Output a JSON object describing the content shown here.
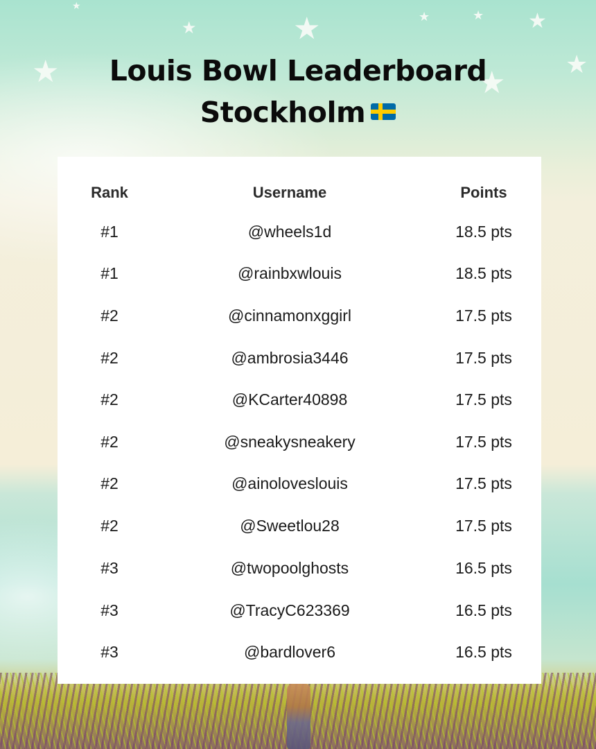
{
  "title_line1": "Louis Bowl Leaderboard",
  "title_line2": "Stockholm",
  "flag_icon": "sweden-flag-icon",
  "columns": {
    "rank": "Rank",
    "username": "Username",
    "points": "Points"
  },
  "rows": [
    {
      "rank": "#1",
      "username": "@wheels1d",
      "points": "18.5 pts"
    },
    {
      "rank": "#1",
      "username": "@rainbxwlouis",
      "points": "18.5 pts"
    },
    {
      "rank": "#2",
      "username": "@cinnamonxggirl",
      "points": "17.5 pts"
    },
    {
      "rank": "#2",
      "username": "@ambrosia3446",
      "points": "17.5 pts"
    },
    {
      "rank": "#2",
      "username": "@KCarter40898",
      "points": "17.5 pts"
    },
    {
      "rank": "#2",
      "username": "@sneakysneakery",
      "points": "17.5 pts"
    },
    {
      "rank": "#2",
      "username": "@ainolovesl ouis",
      "points": "17.5 pts"
    },
    {
      "rank": "#2",
      "username": "@Sweetlou28",
      "points": "17.5 pts"
    },
    {
      "rank": "#3",
      "username": "@twopoolghosts",
      "points": "16.5 pts"
    },
    {
      "rank": "#3",
      "username": "@TracyC623369",
      "points": "16.5 pts"
    },
    {
      "rank": "#3",
      "username": "@bardlover6",
      "points": "16.5 pts"
    }
  ],
  "colors": {
    "title": "#0b0b0b",
    "panel": "#ffffff"
  }
}
